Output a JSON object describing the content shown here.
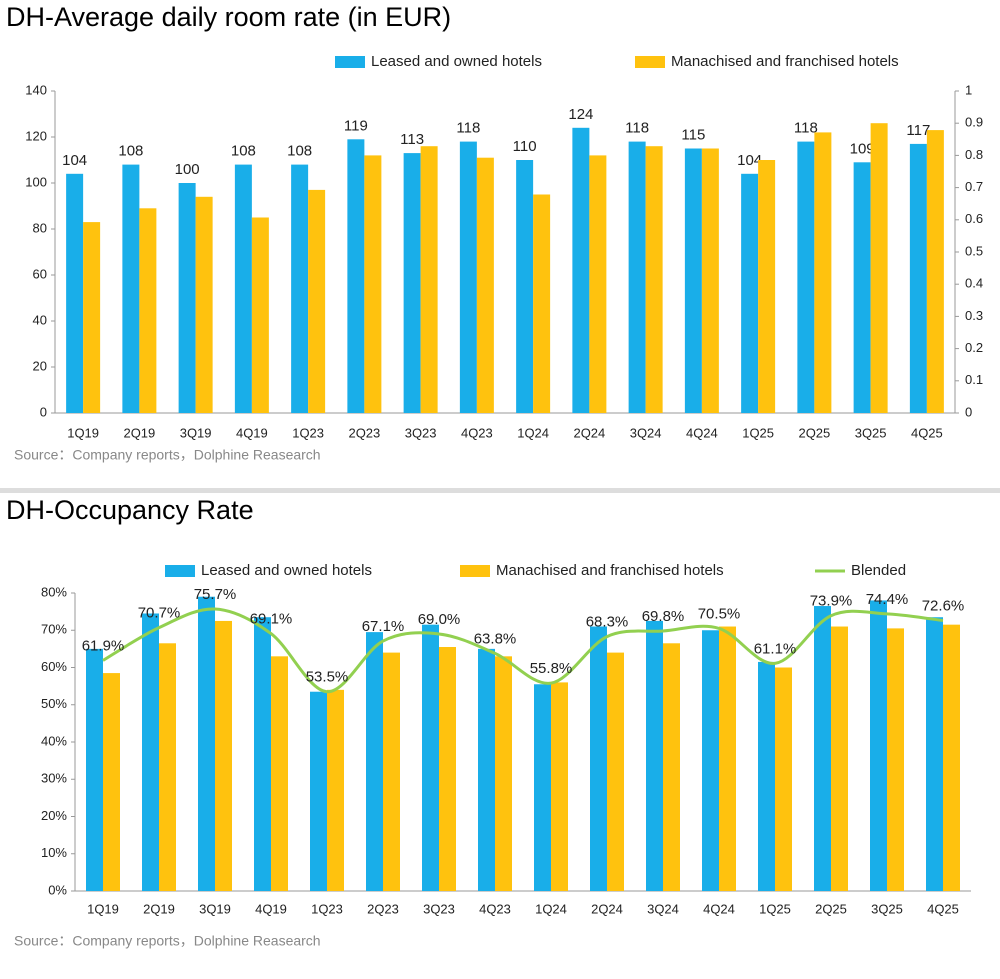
{
  "chart_data": [
    {
      "type": "bar",
      "title": "DH-Average daily room rate (in EUR)",
      "categories": [
        "1Q19",
        "2Q19",
        "3Q19",
        "4Q19",
        "1Q23",
        "2Q23",
        "3Q23",
        "4Q23",
        "1Q24",
        "2Q24",
        "3Q24",
        "4Q24",
        "1Q25",
        "2Q25",
        "3Q25",
        "4Q25"
      ],
      "series": [
        {
          "name": "Leased and owned hotels",
          "color": "#19aee9",
          "values": [
            104,
            108,
            100,
            108,
            108,
            119,
            113,
            118,
            110,
            124,
            118,
            115,
            104,
            118,
            109,
            117
          ],
          "show_labels": true
        },
        {
          "name": "Manachised and franchised hotels",
          "color": "#ffc20e",
          "values": [
            83,
            89,
            94,
            85,
            97,
            112,
            116,
            111,
            95,
            112,
            116,
            115,
            110,
            122,
            126,
            123
          ]
        }
      ],
      "ylim": [
        0,
        140
      ],
      "yticks": [
        0,
        20,
        40,
        60,
        80,
        100,
        120,
        140
      ],
      "y2lim": [
        0,
        1
      ],
      "y2ticks": [
        0,
        0.1,
        0.2,
        0.3,
        0.4,
        0.5,
        0.6,
        0.7,
        0.8,
        0.9,
        1
      ],
      "source": "Source：Company reports，Dolphine Reasearch"
    },
    {
      "type": "bar",
      "title": "DH-Occupancy Rate",
      "categories": [
        "1Q19",
        "2Q19",
        "3Q19",
        "4Q19",
        "1Q23",
        "2Q23",
        "3Q23",
        "4Q23",
        "1Q24",
        "2Q24",
        "3Q24",
        "4Q24",
        "1Q25",
        "2Q25",
        "3Q25",
        "4Q25"
      ],
      "series": [
        {
          "name": "Leased and owned hotels",
          "color": "#19aee9",
          "values": [
            65,
            74.5,
            79,
            73.5,
            53.5,
            69.5,
            71.5,
            65,
            55.5,
            71,
            72.5,
            70,
            61.5,
            76.5,
            78,
            73.5
          ]
        },
        {
          "name": "Manachised and franchised hotels",
          "color": "#ffc20e",
          "values": [
            58.5,
            66.5,
            72.5,
            63,
            54,
            64,
            65.5,
            63,
            56,
            64,
            66.5,
            71,
            60,
            71,
            70.5,
            71.5
          ]
        },
        {
          "name": "Blended",
          "type": "line",
          "color": "#92d050",
          "values": [
            61.9,
            70.7,
            75.7,
            69.1,
            53.5,
            67.1,
            69.0,
            63.8,
            55.8,
            68.3,
            69.8,
            70.5,
            61.1,
            73.9,
            74.4,
            72.6
          ],
          "value_labels": [
            "61.9%",
            "70.7%",
            "75.7%",
            "69.1%",
            "53.5%",
            "67.1%",
            "69.0%",
            "63.8%",
            "55.8%",
            "68.3%",
            "69.8%",
            "70.5%",
            "61.1%",
            "73.9%",
            "74.4%",
            "72.6%"
          ]
        }
      ],
      "ylim": [
        0,
        80
      ],
      "yticks": [
        {
          "value": 0,
          "label": "0%"
        },
        {
          "value": 10,
          "label": "10%"
        },
        {
          "value": 20,
          "label": "20%"
        },
        {
          "value": 30,
          "label": "30%"
        },
        {
          "value": 40,
          "label": "40%"
        },
        {
          "value": 50,
          "label": "50%"
        },
        {
          "value": 60,
          "label": "60%"
        },
        {
          "value": 70,
          "label": "70%"
        },
        {
          "value": 80,
          "label": "80%"
        }
      ],
      "source": "Source：Company reports，Dolphine Reasearch"
    }
  ]
}
